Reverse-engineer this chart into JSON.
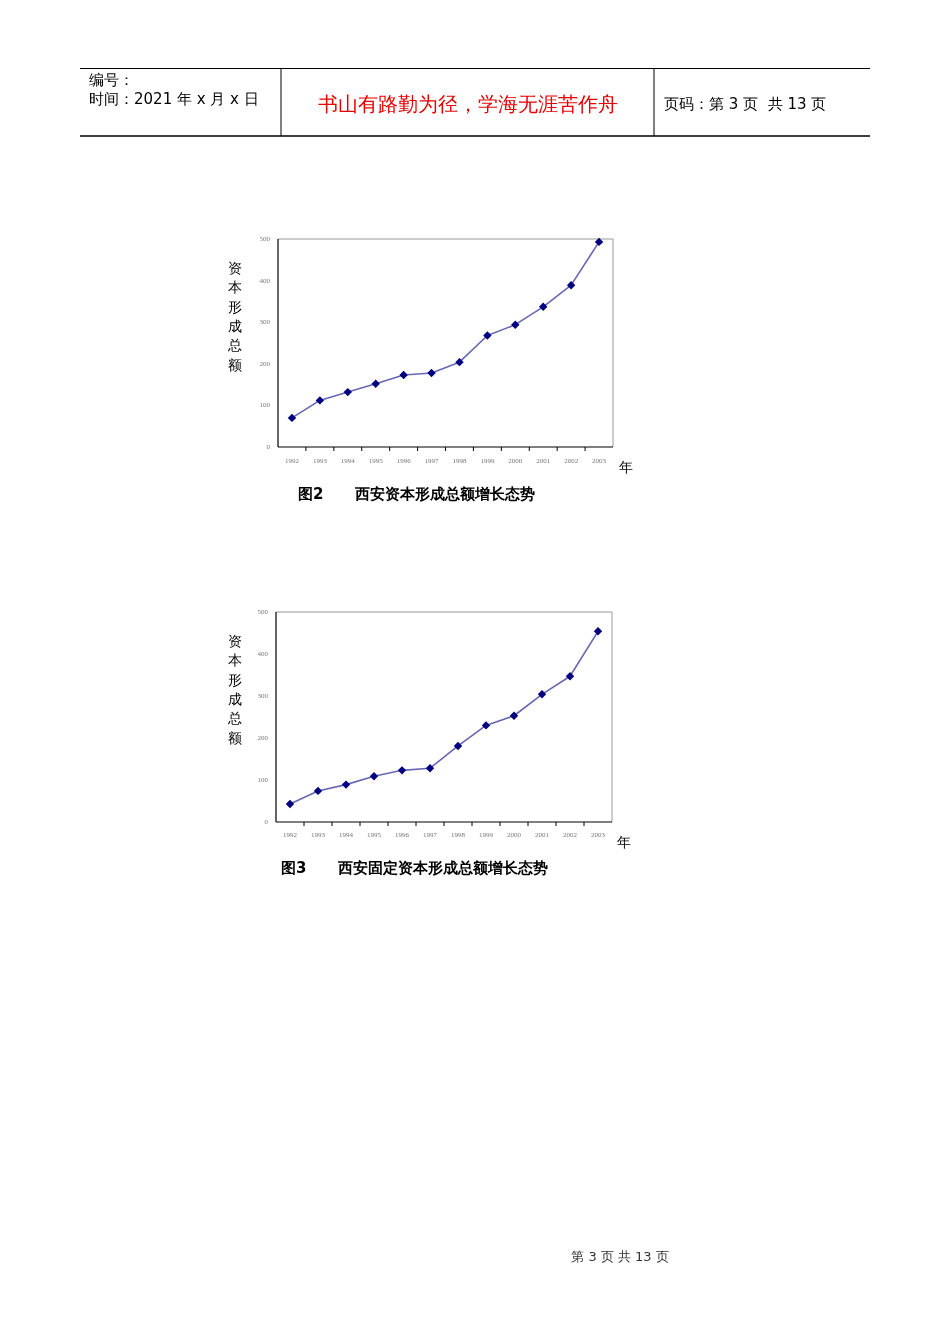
{
  "chart_data": [
    {
      "type": "line",
      "title": "图2      西安资本形成总额增长态势",
      "xlabel": "年",
      "ylabel": "资本形成总额",
      "categories": [
        "1992",
        "1993",
        "1994",
        "1995",
        "1996",
        "1997",
        "1998",
        "1999",
        "2000",
        "2001",
        "2002",
        "2003"
      ],
      "series": [
        {
          "color": "#000080",
          "values": [
            70,
            112,
            132,
            152,
            173,
            178,
            204,
            268,
            294,
            337,
            389,
            493
          ]
        }
      ],
      "ylim": [
        0,
        500
      ],
      "yticks": [
        0,
        100,
        200,
        300,
        400,
        500
      ],
      "marker": "diamond",
      "annotations": [
        "编号：",
        "时间：2021 年 x 月 x 日",
        "书山有路勤为径，学海无涯苦作舟",
        "页码：第 3 页  共 13 页"
      ]
    },
    {
      "type": "line",
      "title": "图3      西安固定资本形成总额增长态势",
      "xlabel": "年",
      "ylabel": "资本形成总额",
      "categories": [
        "1992",
        "1993",
        "1994",
        "1995",
        "1996",
        "1997",
        "1998",
        "1999",
        "2000",
        "2001",
        "2002",
        "2003"
      ],
      "series": [
        {
          "color": "#000080",
          "values": [
            43,
            74,
            89,
            109,
            123,
            128,
            181,
            230,
            253,
            304,
            347,
            454
          ]
        }
      ],
      "ylim": [
        0,
        500
      ],
      "yticks": [
        0,
        100,
        200,
        300,
        400,
        500
      ],
      "marker": "diamond",
      "annotations": [
        "第 3 页 共 13 页"
      ]
    }
  ]
}
